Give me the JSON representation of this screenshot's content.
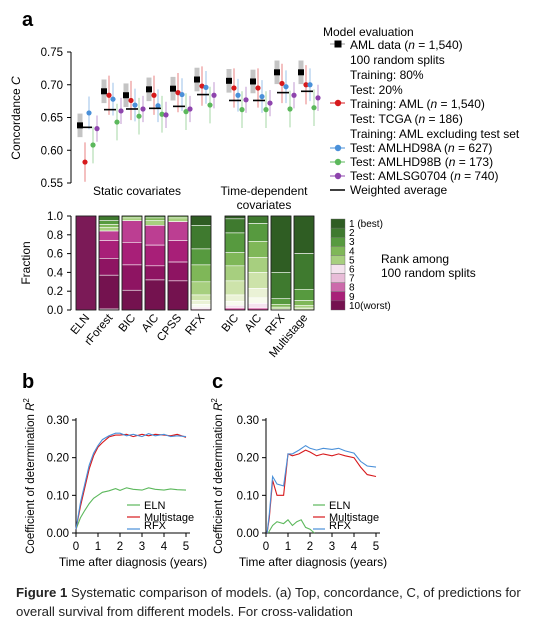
{
  "panel_labels": {
    "a": "a",
    "b": "b",
    "c": "c"
  },
  "panel_a_top": {
    "ylabel": "Concordance C",
    "yticks": [
      "0.55",
      "0.60",
      "0.65",
      "0.70",
      "0.75"
    ],
    "group_labels": [
      "Static covariates",
      "Time-dependent",
      "covariates"
    ]
  },
  "legend": {
    "title": "Model evaluation",
    "lines": [
      "AML data (n = 1,540)",
      "100 random splits",
      "Training: 80%",
      "Test: 20%",
      "Training: AML (n = 1,540)",
      "Test: TCGA (n = 186)",
      "Training: AML excluding test set",
      "Test: AMLHD98A (n = 627)",
      "Test: AMLHD98B (n = 173)",
      "Test: AMLSG0704 (n = 740)",
      "Weighted average"
    ],
    "colors": {
      "aml": "#000000",
      "tcga": "#d7191c",
      "hd98a": "#4a90d9",
      "hd98b": "#5cb85c",
      "sg0704": "#8e44ad",
      "boxgray": "#b0b0b0"
    }
  },
  "panel_a_bottom": {
    "ylabel": "Fraction",
    "yticks": [
      "0.0",
      "0.2",
      "0.4",
      "0.6",
      "0.8",
      "1.0"
    ],
    "rank_legend": [
      "1 (best)",
      "2",
      "3",
      "4",
      "5",
      "6",
      "7",
      "8",
      "9",
      "10(worst)"
    ],
    "rank_title": [
      "Rank among",
      "100 random splits"
    ],
    "static_colors": [
      "#f7f4f9",
      "#f2dcea",
      "#e8bcd8",
      "#dc94c3",
      "#cc6aab",
      "#bc3e92",
      "#a81f78",
      "#8e1462",
      "#74124f",
      "#5a0f3e"
    ],
    "green_colors": [
      "#2f5d23",
      "#3f7a2f",
      "#579a3f",
      "#7fb758",
      "#a7cf7f",
      "#cde3aa",
      "#eaf2d6",
      "#f7fbee",
      "#f4e3ee",
      "#c9388f"
    ]
  },
  "panel_b": {
    "ylabel": "Coefficient of determination R²",
    "xlabel": "Time after diagnosis (years)",
    "yticks": [
      "0.00",
      "0.10",
      "0.20",
      "0.30"
    ],
    "xticks": [
      "0",
      "1",
      "2",
      "3",
      "4",
      "5"
    ],
    "legend": [
      "ELN",
      "Multistage",
      "RFX"
    ]
  },
  "panel_c": {
    "ylabel": "Coefficient of determination R²",
    "xlabel": "Time after diagnosis (years)",
    "yticks": [
      "0.00",
      "0.10",
      "0.20",
      "0.30"
    ],
    "xticks": [
      "0",
      "1",
      "2",
      "3",
      "4",
      "5"
    ],
    "legend": [
      "ELN",
      "Multistage",
      "RFX"
    ]
  },
  "chart_data": [
    {
      "type": "scatter",
      "title": "",
      "ylabel": "Concordance C",
      "ylim": [
        0.55,
        0.75
      ],
      "categories": [
        "ELN",
        "rForest",
        "BIC",
        "AIC",
        "CPSS",
        "RFX",
        "BIC",
        "AIC",
        "RFX",
        "Multistage"
      ],
      "series": [
        {
          "name": "AML data (n = 1,540)",
          "values": [
            0.638,
            0.69,
            0.684,
            0.693,
            0.694,
            0.708,
            0.706,
            0.705,
            0.719,
            0.719
          ]
        },
        {
          "name": "Training: AML (n = 1,540) / Test: TCGA (n = 186)",
          "values": [
            0.582,
            0.684,
            0.676,
            0.684,
            0.688,
            0.698,
            0.695,
            0.695,
            0.702,
            0.7
          ]
        },
        {
          "name": "Test: AMLHD98A (n = 627)",
          "values": [
            0.657,
            0.678,
            0.669,
            0.668,
            0.685,
            0.696,
            0.684,
            0.682,
            0.697,
            0.7
          ]
        },
        {
          "name": "Test: AMLHD98B (n = 173)",
          "values": [
            0.608,
            0.643,
            0.652,
            0.655,
            0.659,
            0.669,
            0.662,
            0.662,
            0.663,
            0.665
          ]
        },
        {
          "name": "Test: AMLSG0704 (n = 740)",
          "values": [
            0.633,
            0.66,
            0.663,
            0.654,
            0.663,
            0.684,
            0.677,
            0.672,
            0.684,
            0.68
          ]
        },
        {
          "name": "Weighted average",
          "values": [
            0.635,
            0.662,
            0.663,
            0.664,
            0.667,
            0.685,
            0.676,
            0.676,
            0.688,
            0.69
          ]
        }
      ]
    },
    {
      "type": "bar",
      "title": "",
      "ylabel": "Fraction",
      "ylim": [
        0,
        1
      ],
      "categories": [
        "ELN",
        "rForest",
        "BIC",
        "AIC",
        "CPSS",
        "RFX",
        "BIC",
        "AIC",
        "RFX",
        "Multistage"
      ],
      "series": [
        {
          "name": "1 (best)",
          "values": [
            0.0,
            0.0,
            0.0,
            0.0,
            0.0,
            0.1,
            0.03,
            0.0,
            0.6,
            0.4
          ]
        },
        {
          "name": "2",
          "values": [
            0.0,
            0.05,
            0.0,
            0.0,
            0.0,
            0.25,
            0.15,
            0.08,
            0.28,
            0.38
          ]
        },
        {
          "name": "3",
          "values": [
            0.0,
            0.04,
            0.0,
            0.02,
            0.0,
            0.17,
            0.21,
            0.19,
            0.06,
            0.12
          ]
        },
        {
          "name": "4",
          "values": [
            0.0,
            0.03,
            0.02,
            0.03,
            0.02,
            0.18,
            0.14,
            0.17,
            0.03,
            0.05
          ]
        },
        {
          "name": "5",
          "values": [
            0.0,
            0.04,
            0.03,
            0.05,
            0.04,
            0.14,
            0.16,
            0.16,
            0.02,
            0.03
          ]
        },
        {
          "name": "6",
          "values": [
            0.0,
            0.1,
            0.23,
            0.21,
            0.2,
            0.06,
            0.15,
            0.17,
            0.01,
            0.02
          ]
        },
        {
          "name": "7",
          "values": [
            0.0,
            0.19,
            0.24,
            0.22,
            0.23,
            0.04,
            0.07,
            0.1,
            0.0,
            0.0
          ]
        },
        {
          "name": "8",
          "values": [
            0.0,
            0.18,
            0.27,
            0.15,
            0.2,
            0.03,
            0.04,
            0.06,
            0.0,
            0.0
          ]
        },
        {
          "name": "9",
          "values": [
            0.0,
            0.36,
            0.21,
            0.32,
            0.31,
            0.02,
            0.03,
            0.05,
            0.0,
            0.0
          ]
        },
        {
          "name": "10(worst)",
          "values": [
            1.0,
            0.01,
            0.0,
            0.0,
            0.0,
            0.01,
            0.02,
            0.02,
            0.0,
            0.0
          ]
        }
      ]
    },
    {
      "type": "line",
      "title": "",
      "xlabel": "Time after diagnosis (years)",
      "ylabel": "Coefficient of determination R²",
      "xlim": [
        0,
        5
      ],
      "ylim": [
        0,
        0.3
      ],
      "x": [
        0,
        0.1,
        0.2,
        0.4,
        0.6,
        0.8,
        1.0,
        1.2,
        1.5,
        1.8,
        2.0,
        2.3,
        2.6,
        3.0,
        3.3,
        3.6,
        4.0,
        4.3,
        4.6,
        5.0
      ],
      "series": [
        {
          "name": "ELN",
          "values": [
            0.01,
            0.025,
            0.04,
            0.06,
            0.078,
            0.092,
            0.1,
            0.108,
            0.112,
            0.118,
            0.113,
            0.12,
            0.116,
            0.114,
            0.12,
            0.116,
            0.114,
            0.117,
            0.115,
            0.114
          ]
        },
        {
          "name": "Multistage",
          "values": [
            0.01,
            0.04,
            0.07,
            0.12,
            0.17,
            0.205,
            0.228,
            0.24,
            0.255,
            0.26,
            0.26,
            0.262,
            0.256,
            0.262,
            0.258,
            0.262,
            0.26,
            0.258,
            0.262,
            0.254
          ]
        },
        {
          "name": "RFX",
          "values": [
            0.01,
            0.045,
            0.08,
            0.13,
            0.18,
            0.212,
            0.232,
            0.248,
            0.258,
            0.265,
            0.265,
            0.258,
            0.262,
            0.256,
            0.264,
            0.258,
            0.262,
            0.256,
            0.258,
            0.256
          ]
        }
      ]
    },
    {
      "type": "line",
      "title": "",
      "xlabel": "Time after diagnosis (years)",
      "ylabel": "Coefficient of determination R²",
      "xlim": [
        0,
        5
      ],
      "ylim": [
        0,
        0.3
      ],
      "series": [
        {
          "name": "ELN",
          "x": [
            0.1,
            0.3,
            0.5,
            0.8,
            1.0,
            1.2,
            1.4,
            1.6,
            1.8,
            2.0,
            2.2
          ],
          "values": [
            0.0,
            0.02,
            0.03,
            0.025,
            0.035,
            0.02,
            0.03,
            0.035,
            0.015,
            0.01,
            0.0
          ]
        },
        {
          "name": "Multistage",
          "x": [
            0.05,
            0.15,
            0.3,
            0.5,
            0.8,
            1.0,
            1.2,
            1.5,
            1.8,
            2.0,
            2.3,
            2.6,
            3.0,
            3.3,
            3.6,
            4.0,
            4.3,
            4.6,
            5.0
          ],
          "values": [
            0.0,
            0.04,
            0.14,
            0.1,
            0.1,
            0.21,
            0.205,
            0.21,
            0.22,
            0.215,
            0.205,
            0.21,
            0.205,
            0.21,
            0.205,
            0.2,
            0.175,
            0.155,
            0.15
          ]
        },
        {
          "name": "RFX",
          "x": [
            0.05,
            0.15,
            0.3,
            0.5,
            0.8,
            1.0,
            1.2,
            1.5,
            1.8,
            2.0,
            2.3,
            2.6,
            3.0,
            3.3,
            3.6,
            4.0,
            4.3,
            4.6,
            5.0
          ],
          "values": [
            0.0,
            0.05,
            0.15,
            0.13,
            0.125,
            0.21,
            0.21,
            0.22,
            0.232,
            0.225,
            0.22,
            0.225,
            0.222,
            0.225,
            0.218,
            0.212,
            0.19,
            0.178,
            0.175
          ]
        }
      ]
    }
  ],
  "caption": {
    "figure_label": "Figure 1",
    "text": " Systematic comparison of models. (a) Top, concordance, C, of predictions for overall survival from different models. For cross-validation"
  }
}
